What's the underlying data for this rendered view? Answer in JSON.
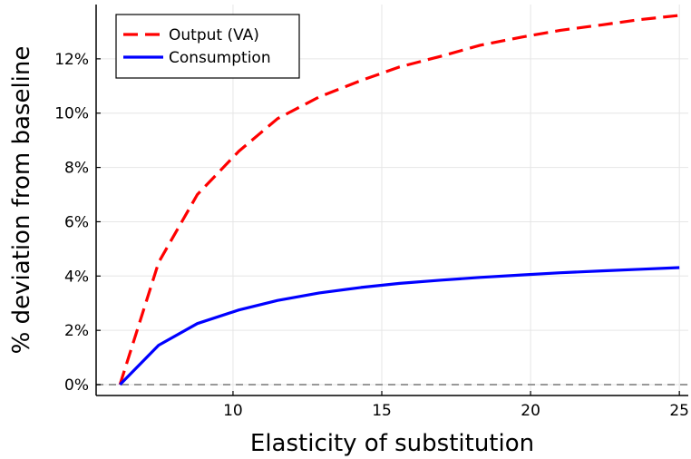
{
  "chart_data": {
    "type": "line",
    "title": "",
    "xlabel": "Elasticity of substitution",
    "ylabel": "% deviation from baseline",
    "xlim": [
      5.4,
      25.3
    ],
    "ylim": [
      -0.4,
      14.0
    ],
    "xticks": [
      10,
      15,
      20,
      25
    ],
    "xtick_labels": [
      "10",
      "15",
      "20",
      "25"
    ],
    "yticks": [
      0,
      2,
      4,
      6,
      8,
      10,
      12
    ],
    "ytick_labels": [
      "0%",
      "2%",
      "4%",
      "6%",
      "8%",
      "10%",
      "12%"
    ],
    "grid": true,
    "legend": {
      "position": "top-left"
    },
    "reference_line": {
      "y": 0,
      "color": "#999999",
      "style": "dashed"
    },
    "series": [
      {
        "name": "Output (VA)",
        "color": "#ff0000",
        "style": "dashed",
        "x": [
          6.2,
          7.5,
          8.8,
          10.2,
          11.5,
          12.9,
          14.3,
          15.6,
          17.0,
          18.3,
          19.7,
          21.0,
          22.4,
          23.7,
          25.0
        ],
        "y": [
          0.0,
          4.5,
          7.0,
          8.6,
          9.8,
          10.6,
          11.2,
          11.7,
          12.1,
          12.5,
          12.8,
          13.05,
          13.25,
          13.45,
          13.6
        ]
      },
      {
        "name": "Consumption",
        "color": "#0000ff",
        "style": "solid",
        "x": [
          6.2,
          7.5,
          8.8,
          10.2,
          11.5,
          12.9,
          14.3,
          15.6,
          17.0,
          18.3,
          19.7,
          21.0,
          22.4,
          23.7,
          25.0
        ],
        "y": [
          0.0,
          1.45,
          2.25,
          2.75,
          3.1,
          3.38,
          3.58,
          3.73,
          3.85,
          3.95,
          4.04,
          4.12,
          4.19,
          4.25,
          4.31
        ]
      }
    ]
  }
}
